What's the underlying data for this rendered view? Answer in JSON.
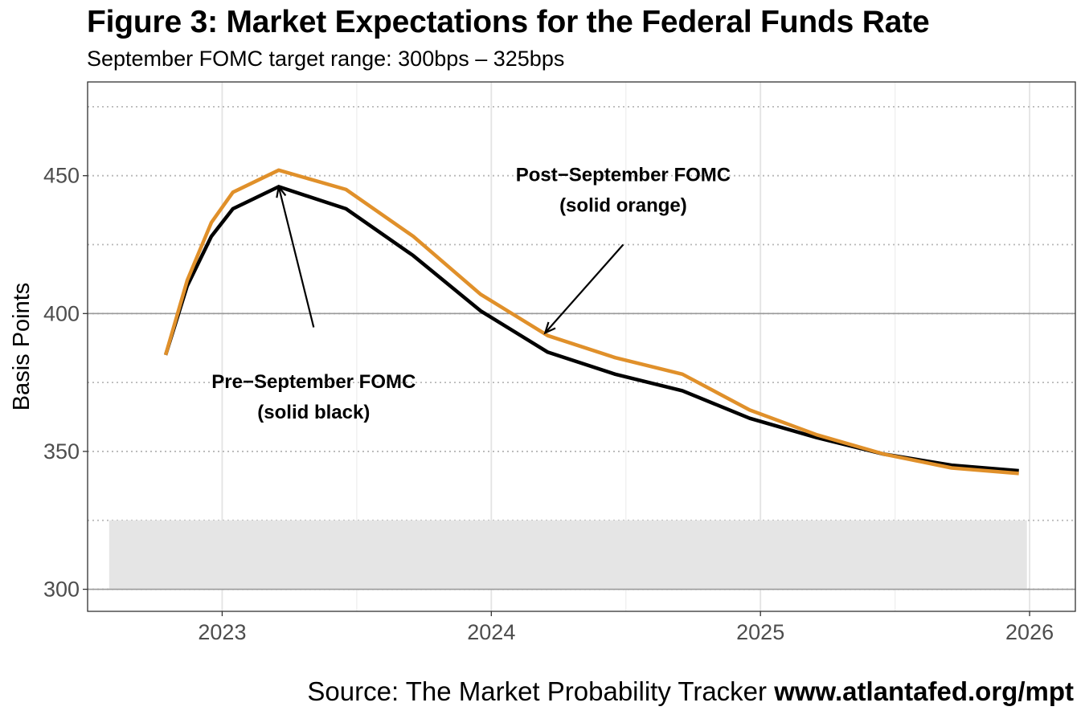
{
  "header": {
    "title": "Figure 3: Market Expectations for the Federal Funds Rate",
    "subtitle": "September FOMC target range: 300bps – 325bps"
  },
  "caption": {
    "text": "Source: The Market Probability Tracker ",
    "link": "www.atlantafed.org/mpt"
  },
  "chart_data": {
    "type": "line",
    "title": "Figure 3: Market Expectations for the Federal Funds Rate",
    "subtitle": "September FOMC target range: 300bps – 325bps",
    "xlabel": "",
    "ylabel": "Basis Points",
    "xlim": [
      2022.5,
      2026.17
    ],
    "ylim": [
      292,
      484
    ],
    "x_ticks": [
      2023,
      2024,
      2025,
      2026
    ],
    "x_tick_labels": [
      "2023",
      "2024",
      "2025",
      "2026"
    ],
    "y_ticks": [
      300,
      350,
      400,
      450
    ],
    "y_tick_labels": [
      "300",
      "350",
      "400",
      "450"
    ],
    "y_minor_ticks": [
      325,
      375,
      425,
      475
    ],
    "grid": true,
    "target_band": {
      "x": [
        2022.58,
        2025.99
      ],
      "y": [
        300,
        325
      ],
      "color": "#e5e5e5"
    },
    "series": [
      {
        "name": "Pre−September FOMC (solid black)",
        "color": "#000000",
        "x": [
          2022.79,
          2022.87,
          2022.96,
          2023.04,
          2023.21,
          2023.46,
          2023.71,
          2023.96,
          2024.21,
          2024.46,
          2024.71,
          2024.96,
          2025.21,
          2025.46,
          2025.71,
          2025.96
        ],
        "y": [
          385,
          410,
          428,
          438,
          446,
          438,
          421,
          401,
          386,
          378,
          372,
          362,
          355,
          349,
          345,
          343
        ]
      },
      {
        "name": "Post−September FOMC (solid orange)",
        "color": "#e0902a",
        "x": [
          2022.79,
          2022.87,
          2022.96,
          2023.04,
          2023.21,
          2023.46,
          2023.71,
          2023.96,
          2024.21,
          2024.46,
          2024.71,
          2024.96,
          2025.21,
          2025.46,
          2025.71,
          2025.96
        ],
        "y": [
          385,
          412,
          433,
          444,
          452,
          445,
          428,
          407,
          392,
          384,
          378,
          365,
          356,
          349,
          344,
          342
        ]
      }
    ],
    "annotations": [
      {
        "id": "post",
        "lines": [
          "Post−September FOMC",
          "(solid orange)"
        ],
        "x": 2024.49,
        "y": 448,
        "arrow_from": [
          2024.49,
          425
        ],
        "arrow_to": [
          2024.2,
          393
        ]
      },
      {
        "id": "pre",
        "lines": [
          "Pre−September FOMC",
          "(solid black)"
        ],
        "x": 2023.34,
        "y": 373,
        "arrow_from": [
          2023.34,
          395
        ],
        "arrow_to": [
          2023.21,
          446
        ]
      }
    ]
  }
}
